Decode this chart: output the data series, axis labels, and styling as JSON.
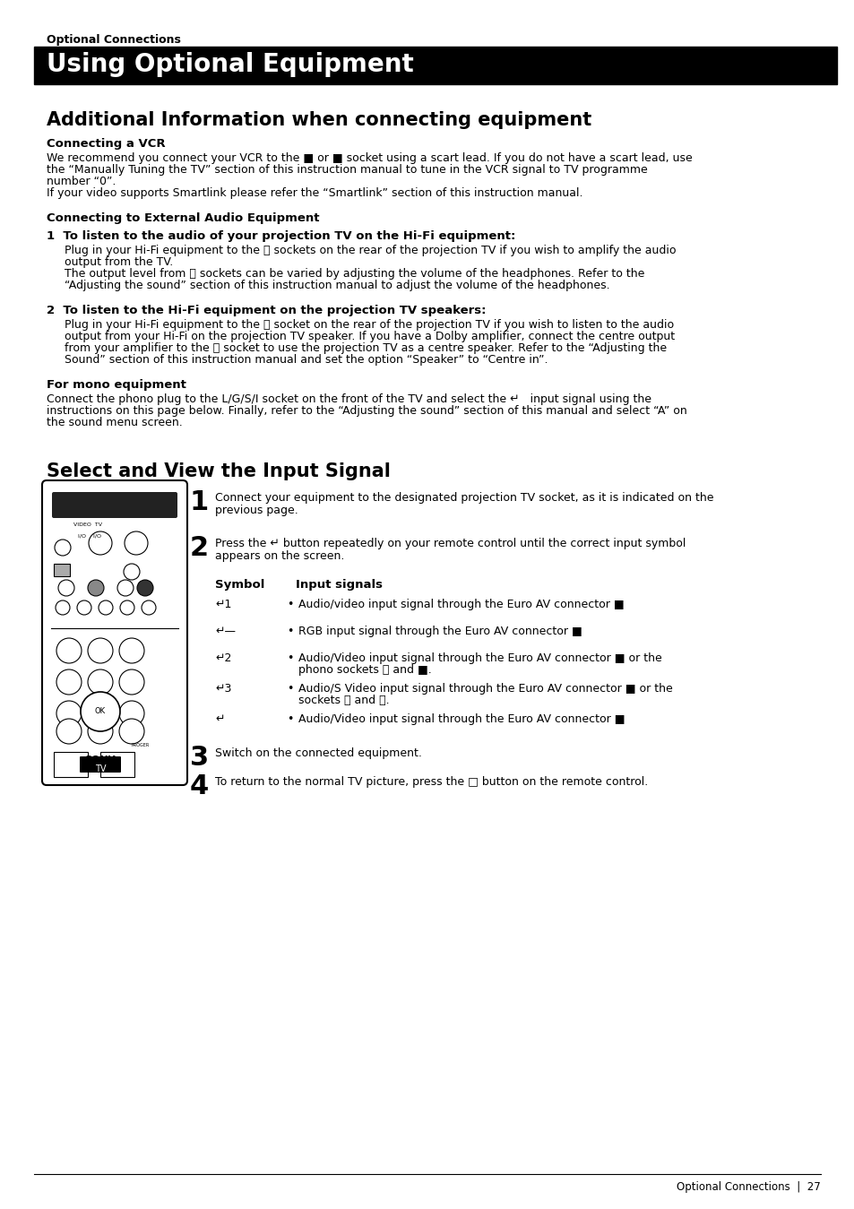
{
  "bg_color": "#ffffff",
  "section_label": "Optional Connections",
  "main_title": "Using Optional Equipment",
  "main_title_bg": "#000000",
  "main_title_color": "#ffffff",
  "section2_title": "Additional Information when connecting equipment",
  "sub1_title": "Connecting a VCR",
  "sub1_body": "We recommend you connect your VCR to the ■ or ■ socket using a scart lead. If you do not have a scart lead, use\nthe “Manually Tuning the TV” section of this instruction manual to tune in the VCR signal to TV programme\nnumber “0”.\nIf your video supports Smartlink please refer the “Smartlink” section of this instruction manual.",
  "sub2_title": "Connecting to External Audio Equipment",
  "item1_title": "1  To listen to the audio of your projection TV on the Hi-Fi equipment:",
  "item1_body": "Plug in your Hi-Fi equipment to the Ｂ sockets on the rear of the projection TV if you wish to amplify the audio\noutput from the TV.\nThe output level from Ｂ sockets can be varied by adjusting the volume of the headphones. Refer to the\n“Adjusting the sound” section of this instruction manual to adjust the volume of the headphones.",
  "item2_title": "2  To listen to the Hi-Fi equipment on the projection TV speakers:",
  "item2_body": "Plug in your Hi-Fi equipment to the Ａ socket on the rear of the projection TV if you wish to listen to the audio\noutput from your Hi-Fi on the projection TV speaker. If you have a Dolby amplifier, connect the centre output\nfrom your amplifier to the Ａ socket to use the projection TV as a centre speaker. Refer to the “Adjusting the\nSound” section of this instruction manual and set the option “Speaker” to “Centre in”.",
  "sub3_title": "For mono equipment",
  "sub3_body": "Connect the phono plug to the L/G/S/I socket on the front of the TV and select the ↵   input signal using the\ninstructions on this page below. Finally, refer to the “Adjusting the sound” section of this manual and select “A” on\nthe sound menu screen.",
  "section3_title": "Select and View the Input Signal",
  "step1_num": "1",
  "step1_body": "Connect your equipment to the designated projection TV socket, as it is indicated on the\nprevious page.",
  "step2_num": "2",
  "step2_body": "Press the ↵ button repeatedly on your remote control until the correct input symbol\nappears on the screen.",
  "symbol_header": "Symbol",
  "input_header": "Input signals",
  "symbols": [
    "↵1",
    "↵—",
    "↵2",
    "↵3",
    "↵"
  ],
  "inputs": [
    "Audio/video input signal through the Euro AV connector ■",
    "RGB input signal through the Euro AV connector ■",
    "Audio/Video input signal through the Euro AV connector ■ or the\nphono sockets Ｈ and ■.",
    "Audio/S Video input signal through the Euro AV connector ■ or the\nsockets Ｈ and Ｆ.",
    "Audio/Video input signal through the Euro AV connector ■"
  ],
  "step3_num": "3",
  "step3_body": "Switch on the connected equipment.",
  "step4_num": "4",
  "step4_body": "To return to the normal TV picture, press the □ button on the remote control.",
  "footer_text": "Optional Connections  |  27"
}
